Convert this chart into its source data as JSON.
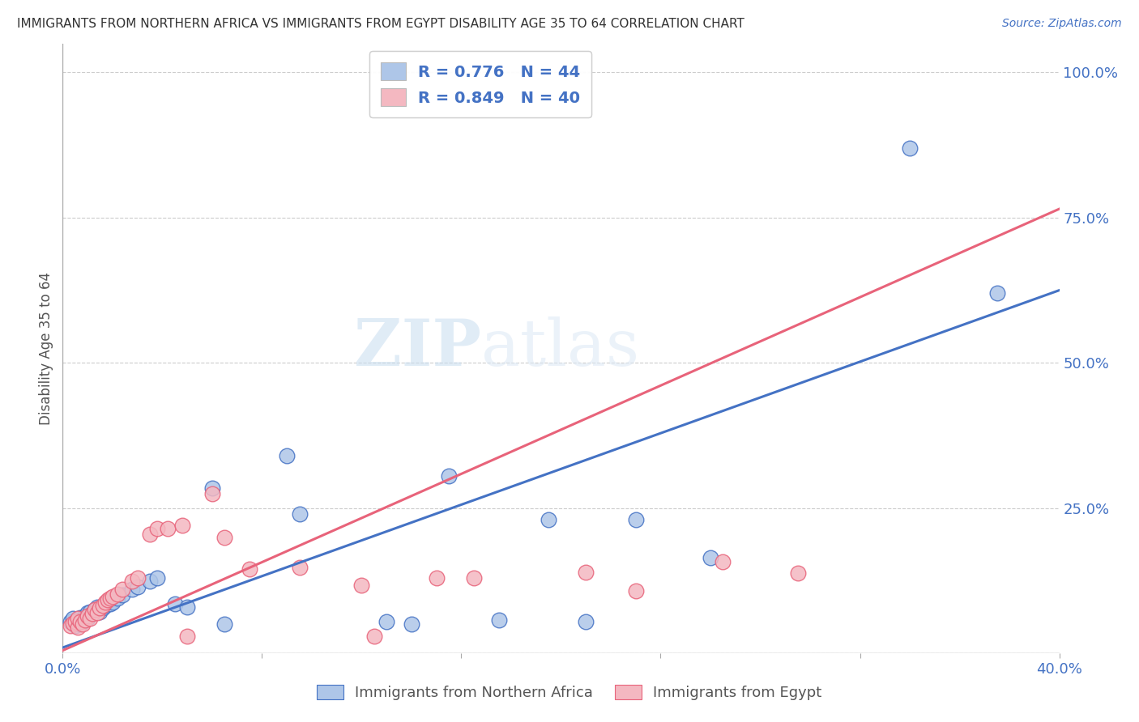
{
  "title": "IMMIGRANTS FROM NORTHERN AFRICA VS IMMIGRANTS FROM EGYPT DISABILITY AGE 35 TO 64 CORRELATION CHART",
  "source": "Source: ZipAtlas.com",
  "ylabel": "Disability Age 35 to 64",
  "xlim": [
    0.0,
    0.4
  ],
  "ylim": [
    0.0,
    1.05
  ],
  "x_ticks": [
    0.0,
    0.08,
    0.16,
    0.24,
    0.32,
    0.4
  ],
  "x_tick_labels": [
    "0.0%",
    "",
    "",
    "",
    "",
    "40.0%"
  ],
  "y_ticks_right": [
    0.0,
    0.25,
    0.5,
    0.75,
    1.0
  ],
  "y_tick_labels_right": [
    "",
    "25.0%",
    "50.0%",
    "75.0%",
    "100.0%"
  ],
  "legend_items": [
    {
      "label": "R = 0.776   N = 44",
      "color": "#aec6e8"
    },
    {
      "label": "R = 0.849   N = 40",
      "color": "#f4b8c1"
    }
  ],
  "series1_color": "#aec6e8",
  "series2_color": "#f4b8c1",
  "line1_color": "#4472c4",
  "line2_color": "#e8637a",
  "watermark_zip": "ZIP",
  "watermark_atlas": "atlas",
  "blue_scatter": [
    [
      0.003,
      0.055
    ],
    [
      0.004,
      0.06
    ],
    [
      0.005,
      0.048
    ],
    [
      0.006,
      0.052
    ],
    [
      0.006,
      0.058
    ],
    [
      0.007,
      0.05
    ],
    [
      0.007,
      0.062
    ],
    [
      0.008,
      0.055
    ],
    [
      0.008,
      0.06
    ],
    [
      0.009,
      0.065
    ],
    [
      0.01,
      0.06
    ],
    [
      0.01,
      0.07
    ],
    [
      0.011,
      0.072
    ],
    [
      0.012,
      0.068
    ],
    [
      0.013,
      0.075
    ],
    [
      0.014,
      0.08
    ],
    [
      0.015,
      0.072
    ],
    [
      0.016,
      0.078
    ],
    [
      0.017,
      0.082
    ],
    [
      0.018,
      0.09
    ],
    [
      0.019,
      0.085
    ],
    [
      0.02,
      0.088
    ],
    [
      0.022,
      0.095
    ],
    [
      0.024,
      0.1
    ],
    [
      0.028,
      0.11
    ],
    [
      0.03,
      0.115
    ],
    [
      0.035,
      0.125
    ],
    [
      0.038,
      0.13
    ],
    [
      0.045,
      0.085
    ],
    [
      0.05,
      0.08
    ],
    [
      0.06,
      0.285
    ],
    [
      0.065,
      0.05
    ],
    [
      0.09,
      0.34
    ],
    [
      0.095,
      0.24
    ],
    [
      0.13,
      0.055
    ],
    [
      0.14,
      0.05
    ],
    [
      0.155,
      0.305
    ],
    [
      0.175,
      0.058
    ],
    [
      0.195,
      0.23
    ],
    [
      0.21,
      0.055
    ],
    [
      0.23,
      0.23
    ],
    [
      0.26,
      0.165
    ],
    [
      0.34,
      0.87
    ],
    [
      0.375,
      0.62
    ]
  ],
  "pink_scatter": [
    [
      0.003,
      0.048
    ],
    [
      0.004,
      0.052
    ],
    [
      0.005,
      0.055
    ],
    [
      0.006,
      0.045
    ],
    [
      0.006,
      0.06
    ],
    [
      0.007,
      0.055
    ],
    [
      0.008,
      0.05
    ],
    [
      0.009,
      0.058
    ],
    [
      0.01,
      0.065
    ],
    [
      0.011,
      0.06
    ],
    [
      0.012,
      0.068
    ],
    [
      0.013,
      0.075
    ],
    [
      0.014,
      0.07
    ],
    [
      0.015,
      0.078
    ],
    [
      0.016,
      0.082
    ],
    [
      0.017,
      0.088
    ],
    [
      0.018,
      0.092
    ],
    [
      0.019,
      0.095
    ],
    [
      0.02,
      0.098
    ],
    [
      0.022,
      0.102
    ],
    [
      0.024,
      0.11
    ],
    [
      0.028,
      0.125
    ],
    [
      0.03,
      0.13
    ],
    [
      0.035,
      0.205
    ],
    [
      0.038,
      0.215
    ],
    [
      0.042,
      0.215
    ],
    [
      0.048,
      0.22
    ],
    [
      0.05,
      0.03
    ],
    [
      0.06,
      0.275
    ],
    [
      0.065,
      0.2
    ],
    [
      0.075,
      0.145
    ],
    [
      0.095,
      0.148
    ],
    [
      0.12,
      0.118
    ],
    [
      0.125,
      0.03
    ],
    [
      0.15,
      0.13
    ],
    [
      0.165,
      0.13
    ],
    [
      0.21,
      0.14
    ],
    [
      0.23,
      0.108
    ],
    [
      0.265,
      0.158
    ],
    [
      0.295,
      0.138
    ]
  ],
  "line1_x": [
    0.0,
    0.4
  ],
  "line1_y": [
    0.01,
    0.625
  ],
  "line2_x": [
    0.0,
    0.4
  ],
  "line2_y": [
    0.005,
    0.765
  ]
}
